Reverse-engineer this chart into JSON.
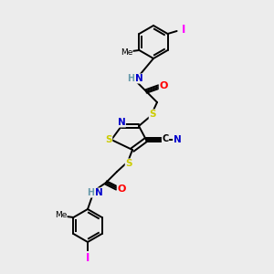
{
  "bg_color": "#ececec",
  "atom_colors": {
    "C": "#000000",
    "N": "#0000cc",
    "O": "#ff0000",
    "S": "#cccc00",
    "I": "#ff00ff",
    "H": "#6699aa"
  },
  "bond_color": "#000000",
  "figsize": [
    3.0,
    3.0
  ],
  "dpi": 100
}
